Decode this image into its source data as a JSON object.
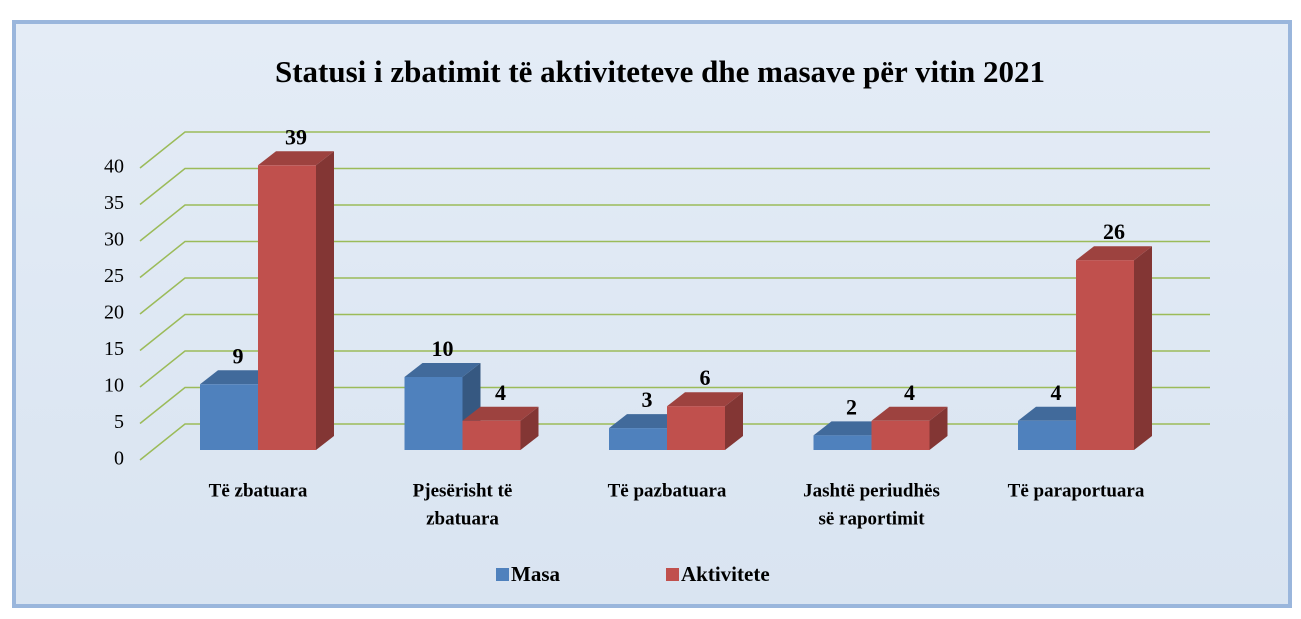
{
  "chart_data": {
    "type": "bar3d",
    "title": "Statusi i zbatimit të aktiviteteve dhe masave për vitin 2021",
    "categories": [
      [
        "Të zbatuara"
      ],
      [
        "Pjesërisht të",
        "zbatuara"
      ],
      [
        "Të pazbatuara"
      ],
      [
        "Jashtë periudhës",
        "së raportimit"
      ],
      [
        "Të paraportuara"
      ]
    ],
    "series": [
      {
        "name": "Masa",
        "color": "#4f81bd",
        "values": [
          9,
          10,
          3,
          2,
          4
        ]
      },
      {
        "name": "Aktivitete",
        "color": "#c0504d",
        "values": [
          39,
          4,
          6,
          4,
          26
        ]
      }
    ],
    "ylim": [
      0,
      40
    ],
    "yticks": [
      0,
      5,
      10,
      15,
      20,
      25,
      30,
      35,
      40
    ],
    "grid": true,
    "grid_color": "#9bbb59",
    "legend": "bottom"
  }
}
